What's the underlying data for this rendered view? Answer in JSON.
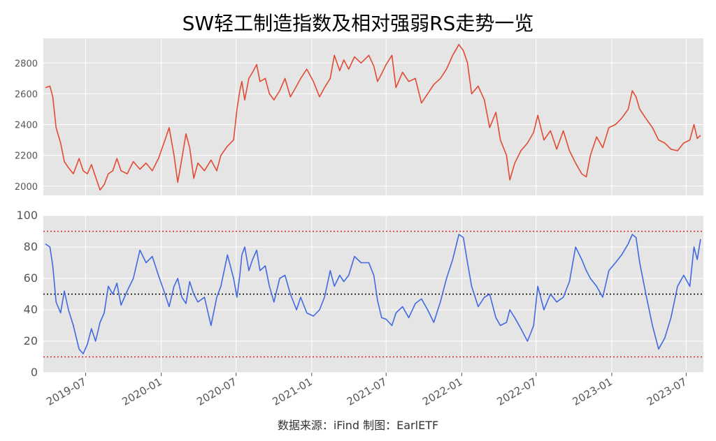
{
  "chart_data": [
    {
      "type": "line",
      "title": "SW轻工制造指数及相对强弱RS走势一览",
      "series_name": "SW轻工制造指数",
      "xlabel": "",
      "ylabel": "",
      "x_range": [
        "2019-03-20",
        "2023-08-12"
      ],
      "ylim": [
        1940,
        2960
      ],
      "yticks": [
        2000,
        2200,
        2400,
        2600,
        2800
      ],
      "grid": true,
      "color": "#e24a33",
      "points": [
        [
          "2019-03-25",
          2640
        ],
        [
          "2019-04-05",
          2650
        ],
        [
          "2019-04-12",
          2580
        ],
        [
          "2019-04-20",
          2380
        ],
        [
          "2019-05-01",
          2280
        ],
        [
          "2019-05-10",
          2160
        ],
        [
          "2019-05-20",
          2120
        ],
        [
          "2019-06-01",
          2080
        ],
        [
          "2019-06-15",
          2180
        ],
        [
          "2019-06-25",
          2100
        ],
        [
          "2019-07-05",
          2080
        ],
        [
          "2019-07-15",
          2140
        ],
        [
          "2019-07-25",
          2060
        ],
        [
          "2019-08-05",
          1975
        ],
        [
          "2019-08-15",
          2010
        ],
        [
          "2019-08-25",
          2080
        ],
        [
          "2019-09-05",
          2100
        ],
        [
          "2019-09-15",
          2180
        ],
        [
          "2019-09-25",
          2100
        ],
        [
          "2019-10-10",
          2080
        ],
        [
          "2019-10-25",
          2160
        ],
        [
          "2019-11-10",
          2110
        ],
        [
          "2019-11-25",
          2150
        ],
        [
          "2019-12-10",
          2100
        ],
        [
          "2019-12-25",
          2180
        ],
        [
          "2020-01-10",
          2300
        ],
        [
          "2020-01-20",
          2380
        ],
        [
          "2020-02-01",
          2200
        ],
        [
          "2020-02-10",
          2025
        ],
        [
          "2020-02-20",
          2180
        ],
        [
          "2020-03-01",
          2340
        ],
        [
          "2020-03-10",
          2250
        ],
        [
          "2020-03-20",
          2050
        ],
        [
          "2020-03-30",
          2150
        ],
        [
          "2020-04-15",
          2100
        ],
        [
          "2020-05-01",
          2170
        ],
        [
          "2020-05-15",
          2100
        ],
        [
          "2020-05-25",
          2200
        ],
        [
          "2020-06-10",
          2260
        ],
        [
          "2020-06-25",
          2300
        ],
        [
          "2020-07-03",
          2500
        ],
        [
          "2020-07-10",
          2620
        ],
        [
          "2020-07-15",
          2680
        ],
        [
          "2020-07-22",
          2560
        ],
        [
          "2020-08-01",
          2700
        ],
        [
          "2020-08-10",
          2740
        ],
        [
          "2020-08-20",
          2790
        ],
        [
          "2020-08-28",
          2680
        ],
        [
          "2020-09-10",
          2700
        ],
        [
          "2020-09-20",
          2600
        ],
        [
          "2020-10-01",
          2560
        ],
        [
          "2020-10-15",
          2620
        ],
        [
          "2020-10-28",
          2700
        ],
        [
          "2020-11-10",
          2580
        ],
        [
          "2020-11-25",
          2650
        ],
        [
          "2020-12-05",
          2700
        ],
        [
          "2020-12-20",
          2760
        ],
        [
          "2021-01-05",
          2680
        ],
        [
          "2021-01-20",
          2580
        ],
        [
          "2021-02-01",
          2640
        ],
        [
          "2021-02-15",
          2700
        ],
        [
          "2021-02-25",
          2850
        ],
        [
          "2021-03-10",
          2750
        ],
        [
          "2021-03-20",
          2820
        ],
        [
          "2021-04-01",
          2760
        ],
        [
          "2021-04-15",
          2840
        ],
        [
          "2021-05-01",
          2800
        ],
        [
          "2021-05-20",
          2850
        ],
        [
          "2021-06-01",
          2780
        ],
        [
          "2021-06-10",
          2680
        ],
        [
          "2021-06-20",
          2730
        ],
        [
          "2021-07-01",
          2790
        ],
        [
          "2021-07-15",
          2850
        ],
        [
          "2021-07-25",
          2640
        ],
        [
          "2021-08-10",
          2740
        ],
        [
          "2021-08-25",
          2680
        ],
        [
          "2021-09-10",
          2700
        ],
        [
          "2021-09-25",
          2540
        ],
        [
          "2021-10-10",
          2600
        ],
        [
          "2021-10-25",
          2660
        ],
        [
          "2021-11-10",
          2700
        ],
        [
          "2021-11-25",
          2760
        ],
        [
          "2021-12-10",
          2850
        ],
        [
          "2021-12-25",
          2920
        ],
        [
          "2022-01-05",
          2880
        ],
        [
          "2022-01-15",
          2800
        ],
        [
          "2022-01-25",
          2600
        ],
        [
          "2022-02-10",
          2650
        ],
        [
          "2022-02-25",
          2560
        ],
        [
          "2022-03-10",
          2380
        ],
        [
          "2022-03-25",
          2480
        ],
        [
          "2022-04-05",
          2300
        ],
        [
          "2022-04-20",
          2200
        ],
        [
          "2022-04-28",
          2040
        ],
        [
          "2022-05-10",
          2150
        ],
        [
          "2022-05-25",
          2230
        ],
        [
          "2022-06-10",
          2280
        ],
        [
          "2022-06-25",
          2350
        ],
        [
          "2022-07-05",
          2460
        ],
        [
          "2022-07-20",
          2300
        ],
        [
          "2022-08-05",
          2360
        ],
        [
          "2022-08-20",
          2240
        ],
        [
          "2022-09-05",
          2360
        ],
        [
          "2022-09-20",
          2230
        ],
        [
          "2022-10-05",
          2150
        ],
        [
          "2022-10-20",
          2080
        ],
        [
          "2022-10-31",
          2060
        ],
        [
          "2022-11-10",
          2200
        ],
        [
          "2022-11-25",
          2320
        ],
        [
          "2022-12-10",
          2250
        ],
        [
          "2022-12-25",
          2380
        ],
        [
          "2023-01-10",
          2400
        ],
        [
          "2023-01-25",
          2440
        ],
        [
          "2023-02-10",
          2500
        ],
        [
          "2023-02-20",
          2620
        ],
        [
          "2023-03-01",
          2580
        ],
        [
          "2023-03-10",
          2500
        ],
        [
          "2023-03-25",
          2440
        ],
        [
          "2023-04-10",
          2380
        ],
        [
          "2023-04-25",
          2300
        ],
        [
          "2023-05-10",
          2280
        ],
        [
          "2023-05-25",
          2240
        ],
        [
          "2023-06-10",
          2230
        ],
        [
          "2023-06-25",
          2280
        ],
        [
          "2023-07-10",
          2300
        ],
        [
          "2023-07-20",
          2400
        ],
        [
          "2023-07-28",
          2310
        ],
        [
          "2023-08-05",
          2330
        ]
      ]
    },
    {
      "type": "line",
      "series_name": "相对强弱RS",
      "xlabel": "",
      "ylabel": "",
      "x_range": [
        "2019-03-20",
        "2023-08-12"
      ],
      "ylim": [
        0,
        100
      ],
      "yticks": [
        0,
        20,
        40,
        60,
        80,
        100
      ],
      "xticks": [
        "2019-07",
        "2020-01",
        "2020-07",
        "2021-01",
        "2021-07",
        "2022-01",
        "2022-07",
        "2023-01",
        "2023-07"
      ],
      "grid": true,
      "color": "#4169e1",
      "reference_lines": [
        {
          "y": 90,
          "color": "#d62728",
          "style": "dotted"
        },
        {
          "y": 50,
          "color": "#000000",
          "style": "dotted"
        },
        {
          "y": 10,
          "color": "#d62728",
          "style": "dotted"
        }
      ],
      "points": [
        [
          "2019-03-25",
          82
        ],
        [
          "2019-04-05",
          80
        ],
        [
          "2019-04-12",
          68
        ],
        [
          "2019-04-20",
          45
        ],
        [
          "2019-05-01",
          38
        ],
        [
          "2019-05-10",
          52
        ],
        [
          "2019-05-20",
          40
        ],
        [
          "2019-06-01",
          30
        ],
        [
          "2019-06-15",
          15
        ],
        [
          "2019-06-25",
          12
        ],
        [
          "2019-07-05",
          18
        ],
        [
          "2019-07-15",
          28
        ],
        [
          "2019-07-25",
          20
        ],
        [
          "2019-08-05",
          32
        ],
        [
          "2019-08-15",
          38
        ],
        [
          "2019-08-25",
          55
        ],
        [
          "2019-09-05",
          50
        ],
        [
          "2019-09-15",
          57
        ],
        [
          "2019-09-25",
          43
        ],
        [
          "2019-10-10",
          52
        ],
        [
          "2019-10-25",
          60
        ],
        [
          "2019-11-10",
          78
        ],
        [
          "2019-11-25",
          70
        ],
        [
          "2019-12-10",
          74
        ],
        [
          "2019-12-25",
          62
        ],
        [
          "2020-01-10",
          50
        ],
        [
          "2020-01-20",
          42
        ],
        [
          "2020-02-01",
          55
        ],
        [
          "2020-02-10",
          60
        ],
        [
          "2020-02-20",
          48
        ],
        [
          "2020-03-01",
          44
        ],
        [
          "2020-03-10",
          58
        ],
        [
          "2020-03-20",
          50
        ],
        [
          "2020-03-30",
          45
        ],
        [
          "2020-04-15",
          48
        ],
        [
          "2020-05-01",
          30
        ],
        [
          "2020-05-15",
          48
        ],
        [
          "2020-05-25",
          55
        ],
        [
          "2020-06-10",
          75
        ],
        [
          "2020-06-25",
          60
        ],
        [
          "2020-07-03",
          48
        ],
        [
          "2020-07-10",
          62
        ],
        [
          "2020-07-15",
          75
        ],
        [
          "2020-07-22",
          80
        ],
        [
          "2020-08-01",
          65
        ],
        [
          "2020-08-10",
          72
        ],
        [
          "2020-08-20",
          78
        ],
        [
          "2020-08-28",
          65
        ],
        [
          "2020-09-10",
          68
        ],
        [
          "2020-09-20",
          55
        ],
        [
          "2020-10-01",
          45
        ],
        [
          "2020-10-15",
          60
        ],
        [
          "2020-10-28",
          62
        ],
        [
          "2020-11-10",
          50
        ],
        [
          "2020-11-25",
          40
        ],
        [
          "2020-12-05",
          48
        ],
        [
          "2020-12-20",
          38
        ],
        [
          "2021-01-05",
          36
        ],
        [
          "2021-01-20",
          40
        ],
        [
          "2021-02-01",
          48
        ],
        [
          "2021-02-15",
          65
        ],
        [
          "2021-02-25",
          55
        ],
        [
          "2021-03-10",
          62
        ],
        [
          "2021-03-20",
          58
        ],
        [
          "2021-04-01",
          62
        ],
        [
          "2021-04-15",
          74
        ],
        [
          "2021-05-01",
          70
        ],
        [
          "2021-05-20",
          70
        ],
        [
          "2021-06-01",
          62
        ],
        [
          "2021-06-10",
          46
        ],
        [
          "2021-06-20",
          35
        ],
        [
          "2021-07-01",
          34
        ],
        [
          "2021-07-15",
          30
        ],
        [
          "2021-07-25",
          38
        ],
        [
          "2021-08-10",
          42
        ],
        [
          "2021-08-25",
          35
        ],
        [
          "2021-09-10",
          44
        ],
        [
          "2021-09-25",
          47
        ],
        [
          "2021-10-10",
          40
        ],
        [
          "2021-10-25",
          32
        ],
        [
          "2021-11-10",
          45
        ],
        [
          "2021-11-25",
          60
        ],
        [
          "2021-12-10",
          72
        ],
        [
          "2021-12-25",
          88
        ],
        [
          "2022-01-05",
          86
        ],
        [
          "2022-01-15",
          70
        ],
        [
          "2022-01-25",
          55
        ],
        [
          "2022-02-10",
          42
        ],
        [
          "2022-02-25",
          48
        ],
        [
          "2022-03-10",
          50
        ],
        [
          "2022-03-25",
          35
        ],
        [
          "2022-04-05",
          30
        ],
        [
          "2022-04-20",
          32
        ],
        [
          "2022-04-28",
          40
        ],
        [
          "2022-05-10",
          35
        ],
        [
          "2022-05-25",
          28
        ],
        [
          "2022-06-10",
          20
        ],
        [
          "2022-06-25",
          30
        ],
        [
          "2022-07-05",
          55
        ],
        [
          "2022-07-20",
          40
        ],
        [
          "2022-08-05",
          50
        ],
        [
          "2022-08-20",
          45
        ],
        [
          "2022-09-05",
          48
        ],
        [
          "2022-09-20",
          58
        ],
        [
          "2022-10-05",
          80
        ],
        [
          "2022-10-20",
          72
        ],
        [
          "2022-10-31",
          65
        ],
        [
          "2022-11-10",
          60
        ],
        [
          "2022-11-25",
          55
        ],
        [
          "2022-12-10",
          48
        ],
        [
          "2022-12-25",
          65
        ],
        [
          "2023-01-10",
          70
        ],
        [
          "2023-01-25",
          75
        ],
        [
          "2023-02-10",
          82
        ],
        [
          "2023-02-20",
          88
        ],
        [
          "2023-03-01",
          86
        ],
        [
          "2023-03-10",
          70
        ],
        [
          "2023-03-25",
          50
        ],
        [
          "2023-04-10",
          30
        ],
        [
          "2023-04-25",
          15
        ],
        [
          "2023-05-10",
          22
        ],
        [
          "2023-05-25",
          35
        ],
        [
          "2023-06-10",
          55
        ],
        [
          "2023-06-25",
          62
        ],
        [
          "2023-07-10",
          55
        ],
        [
          "2023-07-20",
          80
        ],
        [
          "2023-07-28",
          72
        ],
        [
          "2023-08-05",
          85
        ]
      ]
    }
  ],
  "source_text": "数据来源：iFind 制图：EarlETF"
}
